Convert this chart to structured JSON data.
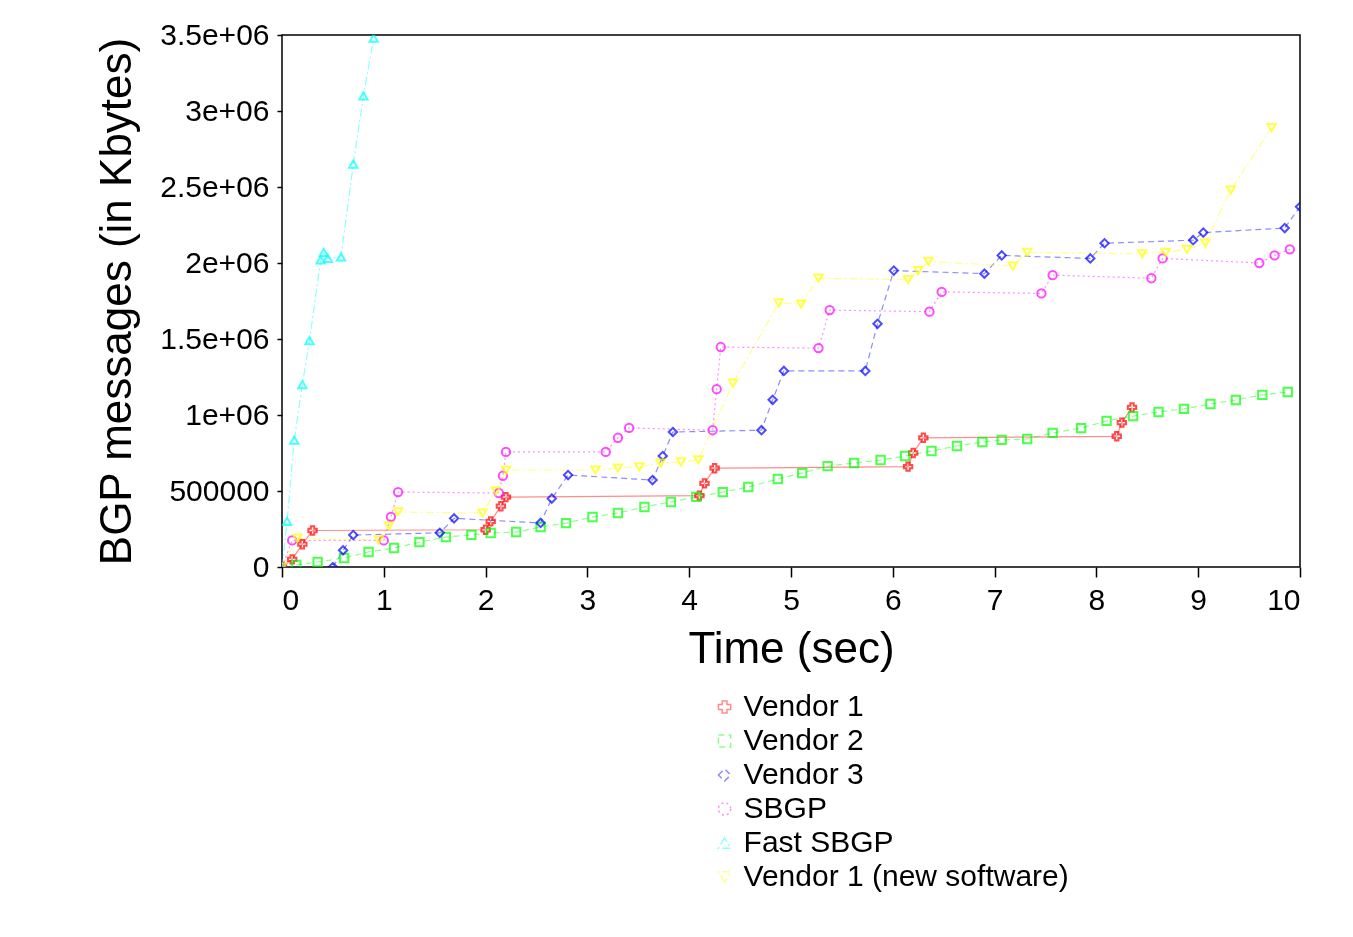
{
  "chart_data": {
    "type": "line",
    "xlabel": "Time (sec)",
    "ylabel": "BGP messages (in Kbytes)",
    "xlim": [
      0,
      10
    ],
    "ylim": [
      0,
      3500000
    ],
    "xticks": [
      0,
      1,
      2,
      3,
      4,
      5,
      6,
      7,
      8,
      9,
      10
    ],
    "yticks": [
      0,
      500000,
      {
        "value": 1000000,
        "label": "1e+06"
      },
      {
        "value": 1500000,
        "label": "1.5e+06"
      },
      {
        "value": 2000000,
        "label": "2e+06"
      },
      {
        "value": 2500000,
        "label": "2.5e+06"
      },
      {
        "value": 3000000,
        "label": "3e+06"
      },
      {
        "value": 3500000,
        "label": "3.5e+06"
      }
    ],
    "grid": false,
    "legend": "bottom",
    "series": [
      {
        "name": "Vendor 1",
        "color": "#ff0000",
        "marker": "cross",
        "line_style": "solid",
        "x": [
          0,
          0.1,
          0.2,
          0.3,
          2.0,
          2.05,
          2.15,
          2.2,
          4.1,
          4.15,
          4.25,
          6.15,
          6.2,
          6.3,
          8.2,
          8.25,
          8.35
        ],
        "values": [
          0,
          50000,
          150000,
          240000,
          245000,
          300000,
          400000,
          460000,
          470000,
          550000,
          650000,
          660000,
          750000,
          850000,
          860000,
          950000,
          1050000
        ]
      },
      {
        "name": "Vendor 2",
        "color": "#00ff00",
        "marker": "square",
        "line_style": "dashed",
        "x": [
          0.14,
          0.35,
          0.61,
          0.85,
          1.1,
          1.35,
          1.61,
          1.86,
          2.05,
          2.3,
          2.54,
          2.79,
          3.05,
          3.3,
          3.56,
          3.82,
          4.07,
          4.33,
          4.58,
          4.87,
          5.11,
          5.36,
          5.62,
          5.88,
          6.12,
          6.38,
          6.63,
          6.88,
          7.07,
          7.32,
          7.57,
          7.85,
          8.1,
          8.36,
          8.61,
          8.86,
          9.12,
          9.37,
          9.63,
          9.88
        ],
        "values": [
          13000,
          33000,
          59000,
          99000,
          125000,
          164000,
          197000,
          211000,
          224000,
          230000,
          263000,
          289000,
          329000,
          355000,
          395000,
          428000,
          461000,
          493000,
          526000,
          579000,
          618000,
          664000,
          684000,
          704000,
          730000,
          763000,
          796000,
          822000,
          836000,
          842000,
          882000,
          914000,
          961000,
          993000,
          1020000,
          1040000,
          1072000,
          1099000,
          1132000,
          1151000
        ]
      },
      {
        "name": "Vendor 3",
        "color": "#0000ff",
        "marker": "diamond",
        "line_style": "dashed",
        "x": [
          0.5,
          0.6,
          0.7,
          1.55,
          1.69,
          2.54,
          2.65,
          2.81,
          3.64,
          3.74,
          3.84,
          4.71,
          4.82,
          4.93,
          5.73,
          5.85,
          6.01,
          6.9,
          7.07,
          7.94,
          8.08,
          8.95,
          9.05,
          9.85,
          10
        ],
        "values": [
          0,
          110000,
          210000,
          225000,
          320000,
          290000,
          450000,
          605000,
          572000,
          730000,
          888000,
          900000,
          1100000,
          1290000,
          1290000,
          1600000,
          1950000,
          1930000,
          2050000,
          2030000,
          2130000,
          2150000,
          2200000,
          2230000,
          2370000
        ]
      },
      {
        "name": "SBGP",
        "color": "#ff00ff",
        "marker": "circle",
        "line_style": "dotted",
        "x": [
          0,
          0.1,
          1.0,
          1.07,
          1.14,
          2.13,
          2.17,
          2.2,
          3.18,
          3.3,
          3.41,
          4.23,
          4.27,
          4.31,
          5.27,
          5.38,
          6.36,
          6.48,
          7.46,
          7.57,
          8.54,
          8.65,
          9.6,
          9.75,
          9.9
        ],
        "values": [
          0,
          175000,
          175000,
          330000,
          493000,
          487000,
          600000,
          757000,
          757000,
          850000,
          915000,
          900000,
          1170000,
          1447000,
          1440000,
          1690000,
          1680000,
          1810000,
          1800000,
          1920000,
          1900000,
          2030000,
          2000000,
          2050000,
          2090000
        ]
      },
      {
        "name": "Fast SBGP",
        "color": "#00ffff",
        "marker": "triangle-up",
        "line_style": "dashdot",
        "x": [
          0,
          0.05,
          0.12,
          0.2,
          0.27,
          0.38,
          0.41,
          0.45,
          0.58,
          0.7,
          0.8,
          0.9
        ],
        "values": [
          0,
          300000,
          835000,
          1200000,
          1490000,
          2020000,
          2070000,
          2030000,
          2040000,
          2650000,
          3100000,
          3480000
        ]
      },
      {
        "name": "Vendor 1 (new software)",
        "color": "#ffff00",
        "marker": "triangle-down",
        "line_style": "dashdot",
        "x": [
          0,
          0.15,
          0.95,
          1.05,
          1.14,
          1.97,
          2.1,
          2.2,
          3.08,
          3.3,
          3.51,
          3.72,
          3.92,
          4.09,
          4.43,
          4.88,
          5.1,
          5.27,
          6.15,
          6.25,
          6.35,
          7.18,
          7.32,
          8.45,
          8.68,
          8.89,
          9.07,
          9.32,
          9.72
        ],
        "values": [
          0,
          190000,
          178000,
          270000,
          362000,
          355000,
          500000,
          638000,
          638000,
          651000,
          658000,
          684000,
          691000,
          704000,
          1210000,
          1737000,
          1730000,
          1900000,
          1890000,
          1950000,
          2010000,
          1980000,
          2070000,
          2060000,
          2070000,
          2090000,
          2130000,
          2480000,
          2890000
        ]
      }
    ]
  }
}
